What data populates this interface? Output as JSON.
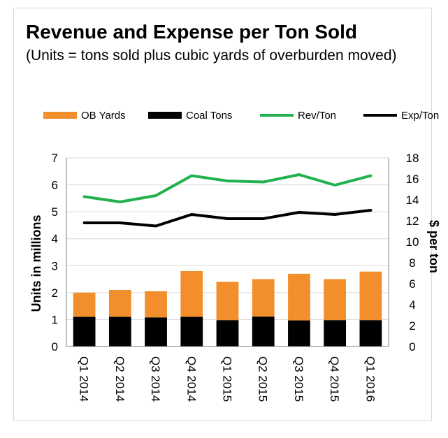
{
  "chart_data": {
    "type": "bar",
    "title": "Revenue and Expense per Ton Sold",
    "subtitle": "(Units = tons sold plus cubic yards of overburden moved)",
    "categories": [
      "Q1 2014",
      "Q2 2014",
      "Q3 2014",
      "Q4 2014",
      "Q1 2015",
      "Q2 2015",
      "Q3 2015",
      "Q4 2015",
      "Q1 2016"
    ],
    "ylabel": "Units in millions",
    "y2label": "$ per ton",
    "ylim": [
      0,
      7
    ],
    "y2lim": [
      0,
      18
    ],
    "yticks": [
      "0",
      "1",
      "2",
      "3",
      "4",
      "5",
      "6",
      "7"
    ],
    "y2ticks": [
      "0",
      "2",
      "4",
      "6",
      "8",
      "10",
      "12",
      "14",
      "16",
      "18"
    ],
    "grid": true,
    "legend_position": "top",
    "series": [
      {
        "name": "OB Yards",
        "type": "stacked-bar",
        "axis": "left",
        "color": "#f28e2b",
        "values": [
          0.9,
          1.0,
          0.97,
          1.7,
          1.42,
          1.39,
          1.73,
          1.52,
          1.8
        ]
      },
      {
        "name": "Coal Tons",
        "type": "stacked-bar",
        "axis": "left",
        "color": "#000000",
        "values": [
          1.1,
          1.1,
          1.08,
          1.1,
          0.98,
          1.11,
          0.97,
          0.98,
          0.98
        ]
      },
      {
        "name": "Rev/Ton",
        "type": "line",
        "axis": "right",
        "color": "#22b14c",
        "values": [
          14.3,
          13.8,
          14.4,
          16.3,
          15.8,
          15.7,
          16.4,
          15.4,
          16.3
        ]
      },
      {
        "name": "Exp/Ton",
        "type": "line",
        "axis": "right",
        "color": "#000000",
        "values": [
          11.8,
          11.8,
          11.5,
          12.6,
          12.2,
          12.2,
          12.8,
          12.6,
          13.0
        ]
      }
    ]
  }
}
